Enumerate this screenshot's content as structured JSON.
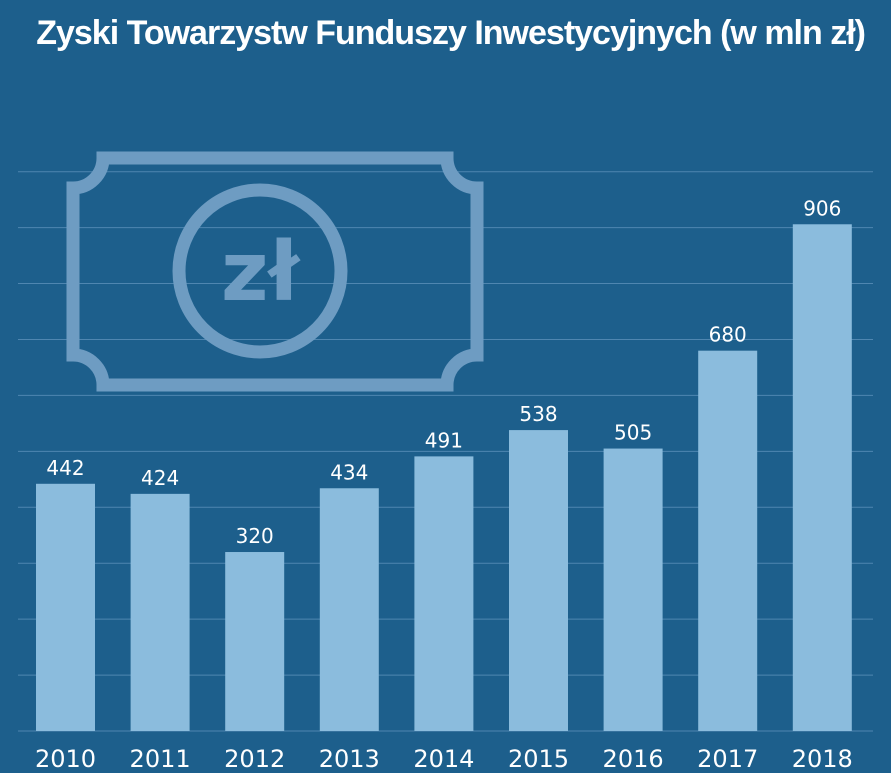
{
  "chart_data": {
    "type": "bar",
    "title": "Zyski Towarzystw Funduszy Inwestycyjnych (w mln zł)",
    "categories": [
      "2010",
      "2011",
      "2012",
      "2013",
      "2014",
      "2015",
      "2016",
      "2017",
      "2018"
    ],
    "values": [
      442,
      424,
      320,
      434,
      491,
      538,
      505,
      680,
      906
    ],
    "xlabel": "",
    "ylabel": "",
    "ylim": [
      0,
      1000
    ],
    "grid": true,
    "legend": "none",
    "colors": {
      "background": "#1d5f8c",
      "bar": "#8bbcdd",
      "grid": "#4f86b0",
      "text": "#ffffff"
    }
  },
  "decoration": {
    "icon": "banknote-icon",
    "symbol": "zł"
  }
}
